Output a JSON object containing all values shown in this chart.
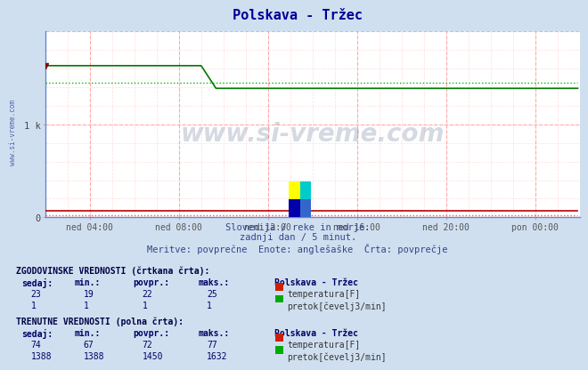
{
  "title": "Polskava - Tržec",
  "bg_color": "#d0dff0",
  "plot_bg_color": "#ffffff",
  "grid_color_major": "#ffaaaa",
  "grid_color_minor": "#ffdddd",
  "title_color": "#000099",
  "subtitle_lines": [
    "Slovenija / reke in morje.",
    "zadnji dan / 5 minut.",
    "Meritve: povprečne  Enote: anglešaške  Črta: povprečje"
  ],
  "watermark_text": "www.si-vreme.com",
  "watermark_color": "#1a3060",
  "watermark_alpha": 0.18,
  "ylabel_tick": "1 k",
  "ytick_val": 1000,
  "xlim": [
    0,
    288
  ],
  "ylim": [
    0,
    2000
  ],
  "x_ticks": [
    24,
    72,
    120,
    168,
    216,
    264
  ],
  "x_tick_labels": [
    "ned 04:00",
    "ned 08:00",
    "ned 12:00",
    "ned 16:00",
    "ned 20:00",
    "pon 00:00"
  ],
  "green_solid_hist_x_break": 84,
  "green_solid_hist_val_before": 1632,
  "green_solid_curr_val": 1388,
  "green_dotted_val": 1450,
  "red_solid_curr_val": 74,
  "red_dotted_val": 22,
  "table_hist_label": "ZGODOVINSKE VREDNOSTI (črtkana črta):",
  "table_curr_label": "TRENUTNE VREDNOSTI (polna črta):",
  "table_cols": [
    "sedaj:",
    "min.:",
    "povpr.:",
    "maks.:"
  ],
  "hist_temp": [
    23,
    19,
    22,
    25
  ],
  "hist_flow": [
    1,
    1,
    1,
    1
  ],
  "curr_temp": [
    74,
    67,
    72,
    77
  ],
  "curr_flow": [
    1388,
    1388,
    1450,
    1632
  ],
  "legend_label1": "temperatura[F]",
  "legend_label2": "pretok[čevelj3/min]",
  "legend_station": "Polskava - Tržec"
}
